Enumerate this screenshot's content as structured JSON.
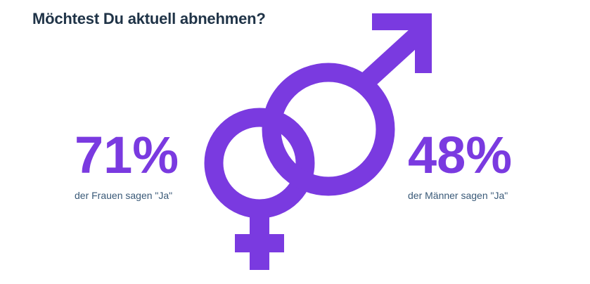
{
  "title": "Möchtest Du aktuell abnehmen?",
  "colors": {
    "accent": "#7a3ae0",
    "title": "#1f3347",
    "label": "#3a5a78"
  },
  "icons": [
    "female-symbol-icon",
    "male-symbol-icon"
  ],
  "chart_data": {
    "type": "infographic",
    "title": "Möchtest Du aktuell abnehmen?",
    "categories": [
      "Frauen",
      "Männer"
    ],
    "values": [
      71,
      48
    ],
    "unit": "%",
    "items": [
      {
        "value": "71%",
        "label": "der Frauen sagen \"Ja\""
      },
      {
        "value": "48%",
        "label": "der Männer sagen \"Ja\""
      }
    ]
  }
}
